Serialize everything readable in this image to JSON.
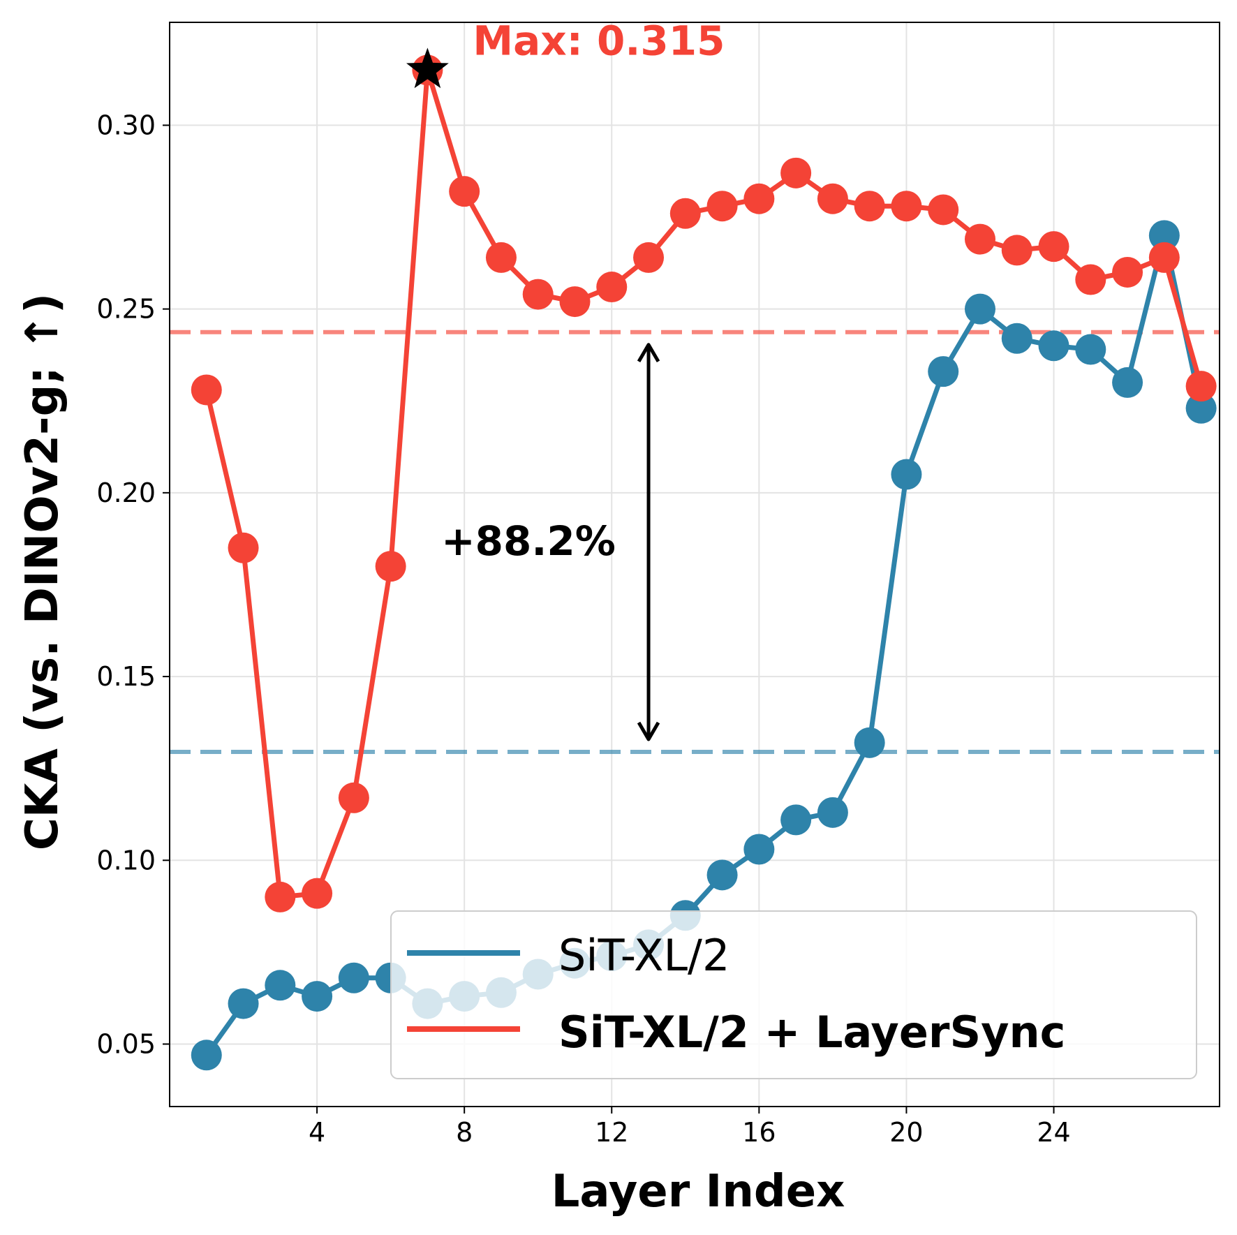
{
  "chart_data": {
    "type": "line",
    "xlabel": "Layer Index",
    "ylabel": "CKA (vs. DINOv2-g; ↑)",
    "xlim": [
      0,
      28.5
    ],
    "ylim": [
      0.033,
      0.328
    ],
    "xticks": [
      4,
      8,
      12,
      16,
      20,
      24
    ],
    "yticks": [
      0.05,
      0.1,
      0.15,
      0.2,
      0.25,
      0.3
    ],
    "ytick_labels": [
      "0.05",
      "0.10",
      "0.15",
      "0.20",
      "0.25",
      "0.30"
    ],
    "grid": true,
    "x": [
      1,
      2,
      3,
      4,
      5,
      6,
      7,
      8,
      9,
      10,
      11,
      12,
      13,
      14,
      15,
      16,
      17,
      18,
      19,
      20,
      21,
      22,
      23,
      24,
      25,
      26,
      27,
      28
    ],
    "series": [
      {
        "name": "SiT-XL/2",
        "color": "#2e83aa",
        "values": [
          0.047,
          0.061,
          0.066,
          0.063,
          0.068,
          0.068,
          0.061,
          0.063,
          0.064,
          0.069,
          0.072,
          0.074,
          0.077,
          0.085,
          0.096,
          0.103,
          0.111,
          0.113,
          0.132,
          0.205,
          0.233,
          0.25,
          0.242,
          0.24,
          0.239,
          0.23,
          0.27,
          0.223
        ],
        "mean": 0.1295
      },
      {
        "name": "SiT-XL/2 + LayerSync",
        "color": "#f44336",
        "values": [
          0.228,
          0.185,
          0.09,
          0.091,
          0.117,
          0.18,
          0.315,
          0.282,
          0.264,
          0.254,
          0.252,
          0.256,
          0.264,
          0.276,
          0.278,
          0.28,
          0.287,
          0.28,
          0.278,
          0.278,
          0.277,
          0.269,
          0.266,
          0.267,
          0.258,
          0.26,
          0.264,
          0.229
        ],
        "mean": 0.2437
      }
    ],
    "annotations": {
      "max_label": "Max: 0.315",
      "max_x": 7,
      "max_y": 0.315,
      "gain_label": "+88.2%",
      "gain_arrow_x": 13
    },
    "legend_position": "lower-right"
  }
}
